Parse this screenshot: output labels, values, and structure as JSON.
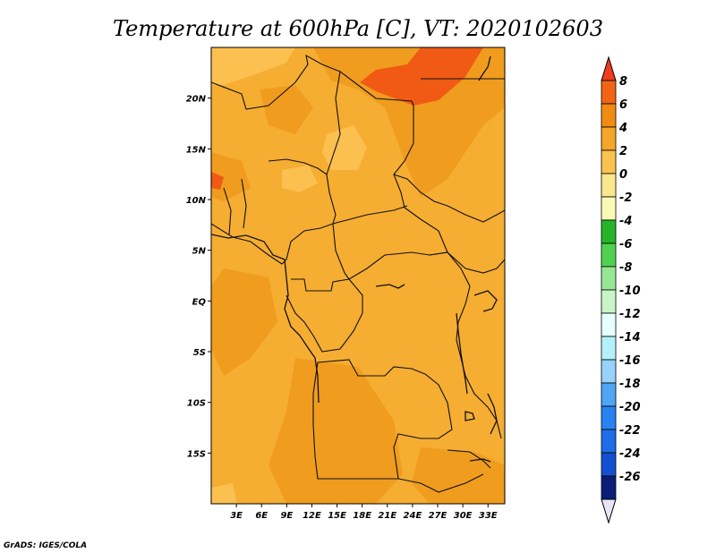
{
  "title": "Temperature at 600hPa [C], VT: 2020102603",
  "credit": "GrADS: IGES/COLA",
  "map": {
    "lon_range": [
      0,
      35
    ],
    "lat_range": [
      -20,
      25
    ],
    "lon_ticks": [
      "3E",
      "6E",
      "9E",
      "12E",
      "15E",
      "18E",
      "21E",
      "24E",
      "27E",
      "30E",
      "33E"
    ],
    "lat_ticks": [
      "20N",
      "15N",
      "10N",
      "5N",
      "EQ",
      "5S",
      "10S",
      "15S"
    ]
  },
  "colorbar": {
    "levels": [
      "8",
      "6",
      "4",
      "2",
      "0",
      "-2",
      "-4",
      "-6",
      "-8",
      "-10",
      "-12",
      "-14",
      "-16",
      "-18",
      "-20",
      "-22",
      "-24",
      "-26"
    ],
    "colors": [
      "#f03c1e",
      "#f06414",
      "#f08c14",
      "#f5a628",
      "#fac350",
      "#fae68c",
      "#fafab4",
      "#28b428",
      "#50d250",
      "#96e696",
      "#c8f5c8",
      "#e6ffff",
      "#b4f0fa",
      "#96d2fa",
      "#50a5f5",
      "#2882f0",
      "#1e6ee6",
      "#1450d2",
      "#0a1e78",
      "#e6e6f5"
    ]
  },
  "palette": {
    "hot": "#f05a14",
    "warm4": "#f09c1e",
    "warm2": "#f5ad32",
    "warm0": "#fbc050",
    "cool": "#fae68c",
    "border": "#111111"
  }
}
